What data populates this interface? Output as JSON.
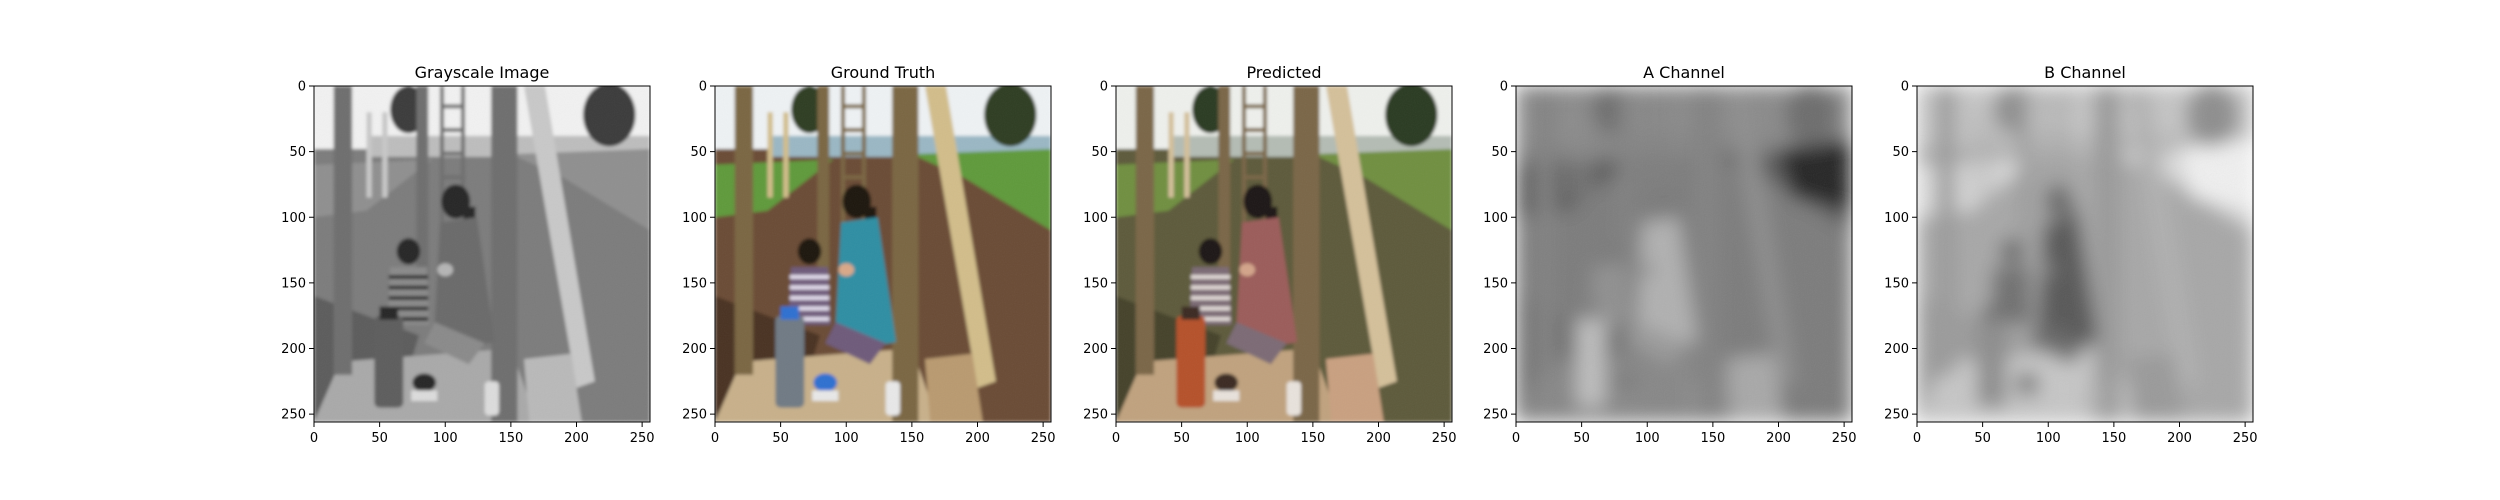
{
  "figure": {
    "background": "#ffffff"
  },
  "chart_data": [
    {
      "type": "heatmap",
      "title": "Grayscale Image",
      "xlim": [
        0,
        256
      ],
      "ylim": [
        256,
        0
      ],
      "xticks": [
        0,
        50,
        100,
        150,
        200,
        250
      ],
      "yticks": [
        0,
        50,
        100,
        150,
        200,
        250
      ],
      "colormap": "gray",
      "grid": false,
      "content": "grayscale photo: woman and child sitting on a wooden bench under a play structure, thermos and cup on bench, gravel ground, sea and trees in background"
    },
    {
      "type": "heatmap",
      "title": "Ground Truth",
      "xlim": [
        0,
        256
      ],
      "ylim": [
        256,
        0
      ],
      "xticks": [
        0,
        50,
        100,
        150,
        200,
        250
      ],
      "yticks": [
        0,
        50,
        100,
        150,
        200,
        250
      ],
      "colormap": "rgb",
      "grid": false,
      "content": "color photo: woman in teal jacket and child in striped top on wooden bench, grey thermos, blue cup, green grass and brown bark mulch"
    },
    {
      "type": "heatmap",
      "title": "Predicted",
      "xlim": [
        0,
        256
      ],
      "ylim": [
        256,
        0
      ],
      "xticks": [
        0,
        50,
        100,
        150,
        200,
        250
      ],
      "yticks": [
        0,
        50,
        100,
        150,
        200,
        250
      ],
      "colormap": "rgb",
      "grid": false,
      "content": "colorized prediction: same scene with muted brownish-green tones, orange thermos, reddish jacket"
    },
    {
      "type": "heatmap",
      "title": "A Channel",
      "xlim": [
        0,
        256
      ],
      "ylim": [
        256,
        0
      ],
      "xticks": [
        0,
        50,
        100,
        150,
        200,
        250
      ],
      "yticks": [
        0,
        50,
        100,
        150,
        200,
        250
      ],
      "colormap": "gray",
      "grid": false,
      "content": "blurry mid-gray chroma map of the scene, dark patch at upper right, light blob on figures"
    },
    {
      "type": "heatmap",
      "title": "B Channel",
      "xlim": [
        0,
        256
      ],
      "ylim": [
        256,
        0
      ],
      "xticks": [
        0,
        50,
        100,
        150,
        200,
        250
      ],
      "yticks": [
        0,
        50,
        100,
        150,
        200,
        250
      ],
      "colormap": "gray",
      "grid": false,
      "content": "blurry light-gray chroma map of the scene, bright area at upper right, darker figures"
    }
  ]
}
